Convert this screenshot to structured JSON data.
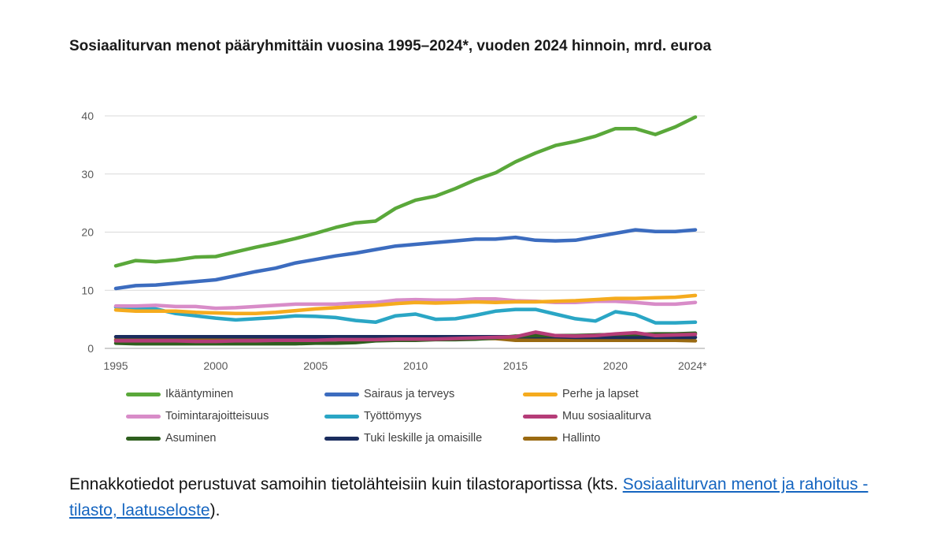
{
  "title": "Sosiaaliturvan menot pääryhmittäin vuosina 1995–2024*, vuoden 2024 hinnoin, mrd. euroa",
  "note": {
    "text_before": "Ennakkotiedot perustuvat samoihin tietolähteisiin kuin tilastoraportissa (kts. ",
    "link_text": "Sosiaaliturvan menot ja rahoitus -tilasto, laatuseloste",
    "text_after": ")."
  },
  "chart_data": {
    "type": "line",
    "title": "Sosiaaliturvan menot pääryhmittäin vuosina 1995–2024*, vuoden 2024 hinnoin, mrd. euroa",
    "xlabel": "",
    "ylabel": "",
    "ylim": [
      0,
      40
    ],
    "yticks": [
      0,
      10,
      20,
      30,
      40
    ],
    "x": [
      1995,
      1996,
      1997,
      1998,
      1999,
      2000,
      2001,
      2002,
      2003,
      2004,
      2005,
      2006,
      2007,
      2008,
      2009,
      2010,
      2011,
      2012,
      2013,
      2014,
      2015,
      2016,
      2017,
      2018,
      2019,
      2020,
      2021,
      2022,
      2023,
      2024
    ],
    "xticks": [
      {
        "value": 1995,
        "label": "1995"
      },
      {
        "value": 2000,
        "label": "2000"
      },
      {
        "value": 2005,
        "label": "2005"
      },
      {
        "value": 2010,
        "label": "2010"
      },
      {
        "value": 2015,
        "label": "2015"
      },
      {
        "value": 2020,
        "label": "2020"
      },
      {
        "value": 2024,
        "label": "2024*"
      }
    ],
    "grid": "horizontal",
    "legend_position": "bottom",
    "series": [
      {
        "name": "Ikääntyminen",
        "color": "#5aa83a",
        "values": [
          14.2,
          15.1,
          14.9,
          15.2,
          15.7,
          15.8,
          16.6,
          17.4,
          18.1,
          18.9,
          19.8,
          20.8,
          21.6,
          21.9,
          24.1,
          25.5,
          26.2,
          27.5,
          29.0,
          30.2,
          32.1,
          33.6,
          34.9,
          35.6,
          36.5,
          37.8,
          37.8,
          36.8,
          38.1,
          39.8
        ]
      },
      {
        "name": "Sairaus ja terveys",
        "color": "#3c6cbf",
        "values": [
          10.3,
          10.8,
          10.9,
          11.2,
          11.5,
          11.8,
          12.5,
          13.2,
          13.8,
          14.7,
          15.3,
          15.9,
          16.4,
          17.0,
          17.6,
          17.9,
          18.2,
          18.5,
          18.8,
          18.8,
          19.1,
          18.6,
          18.5,
          18.6,
          19.2,
          19.8,
          20.4,
          20.1,
          20.1,
          20.4
        ]
      },
      {
        "name": "Perhe ja lapset",
        "color": "#f5ab1e",
        "values": [
          6.6,
          6.4,
          6.4,
          6.4,
          6.2,
          6.1,
          6.0,
          6.0,
          6.2,
          6.5,
          6.8,
          7.0,
          7.2,
          7.4,
          7.7,
          7.9,
          7.8,
          7.9,
          8.0,
          7.9,
          8.0,
          8.0,
          8.1,
          8.2,
          8.4,
          8.6,
          8.6,
          8.7,
          8.8,
          9.1
        ]
      },
      {
        "name": "Toimintarajoitteisuus",
        "color": "#d88cc8",
        "values": [
          7.3,
          7.3,
          7.4,
          7.2,
          7.2,
          6.9,
          7.0,
          7.2,
          7.4,
          7.6,
          7.6,
          7.6,
          7.8,
          7.9,
          8.3,
          8.4,
          8.3,
          8.3,
          8.5,
          8.5,
          8.2,
          8.1,
          7.9,
          7.9,
          8.1,
          8.1,
          7.9,
          7.6,
          7.6,
          7.9
        ]
      },
      {
        "name": "Työttömyys",
        "color": "#2aa6c5",
        "values": [
          7.1,
          7.0,
          6.8,
          6.0,
          5.6,
          5.2,
          4.9,
          5.1,
          5.3,
          5.6,
          5.5,
          5.3,
          4.8,
          4.5,
          5.6,
          5.9,
          5.0,
          5.1,
          5.7,
          6.4,
          6.7,
          6.7,
          5.9,
          5.1,
          4.7,
          6.3,
          5.8,
          4.4,
          4.4,
          4.5
        ]
      },
      {
        "name": "Muu sosiaaliturva",
        "color": "#b53c78",
        "values": [
          1.3,
          1.3,
          1.3,
          1.3,
          1.2,
          1.2,
          1.3,
          1.3,
          1.4,
          1.4,
          1.4,
          1.5,
          1.5,
          1.5,
          1.6,
          1.6,
          1.6,
          1.7,
          1.8,
          1.9,
          2.0,
          2.8,
          2.2,
          2.1,
          2.2,
          2.5,
          2.7,
          2.2,
          2.3,
          2.4
        ]
      },
      {
        "name": "Asuminen",
        "color": "#2e5f1e",
        "values": [
          0.9,
          0.8,
          0.8,
          0.8,
          0.8,
          0.8,
          0.8,
          0.8,
          0.8,
          0.8,
          0.9,
          0.9,
          1.0,
          1.3,
          1.4,
          1.4,
          1.5,
          1.5,
          1.6,
          1.8,
          2.1,
          2.2,
          2.2,
          2.2,
          2.3,
          2.4,
          2.4,
          2.5,
          2.5,
          2.6
        ]
      },
      {
        "name": "Tuki leskille ja omaisille",
        "color": "#1b2d5e",
        "values": [
          2.0,
          2.0,
          2.0,
          2.0,
          2.0,
          2.0,
          2.0,
          2.0,
          2.0,
          2.0,
          2.0,
          2.0,
          2.0,
          2.0,
          2.0,
          2.0,
          2.0,
          2.0,
          2.0,
          2.0,
          2.0,
          2.0,
          2.0,
          1.9,
          1.9,
          1.9,
          1.9,
          1.9,
          1.9,
          1.9
        ]
      },
      {
        "name": "Hallinto",
        "color": "#9a6a12",
        "values": [
          1.5,
          1.5,
          1.5,
          1.5,
          1.5,
          1.5,
          1.6,
          1.6,
          1.6,
          1.6,
          1.6,
          1.6,
          1.7,
          1.7,
          1.7,
          1.7,
          1.7,
          1.7,
          1.7,
          1.7,
          1.4,
          1.4,
          1.4,
          1.4,
          1.4,
          1.4,
          1.4,
          1.4,
          1.4,
          1.3
        ]
      }
    ]
  }
}
